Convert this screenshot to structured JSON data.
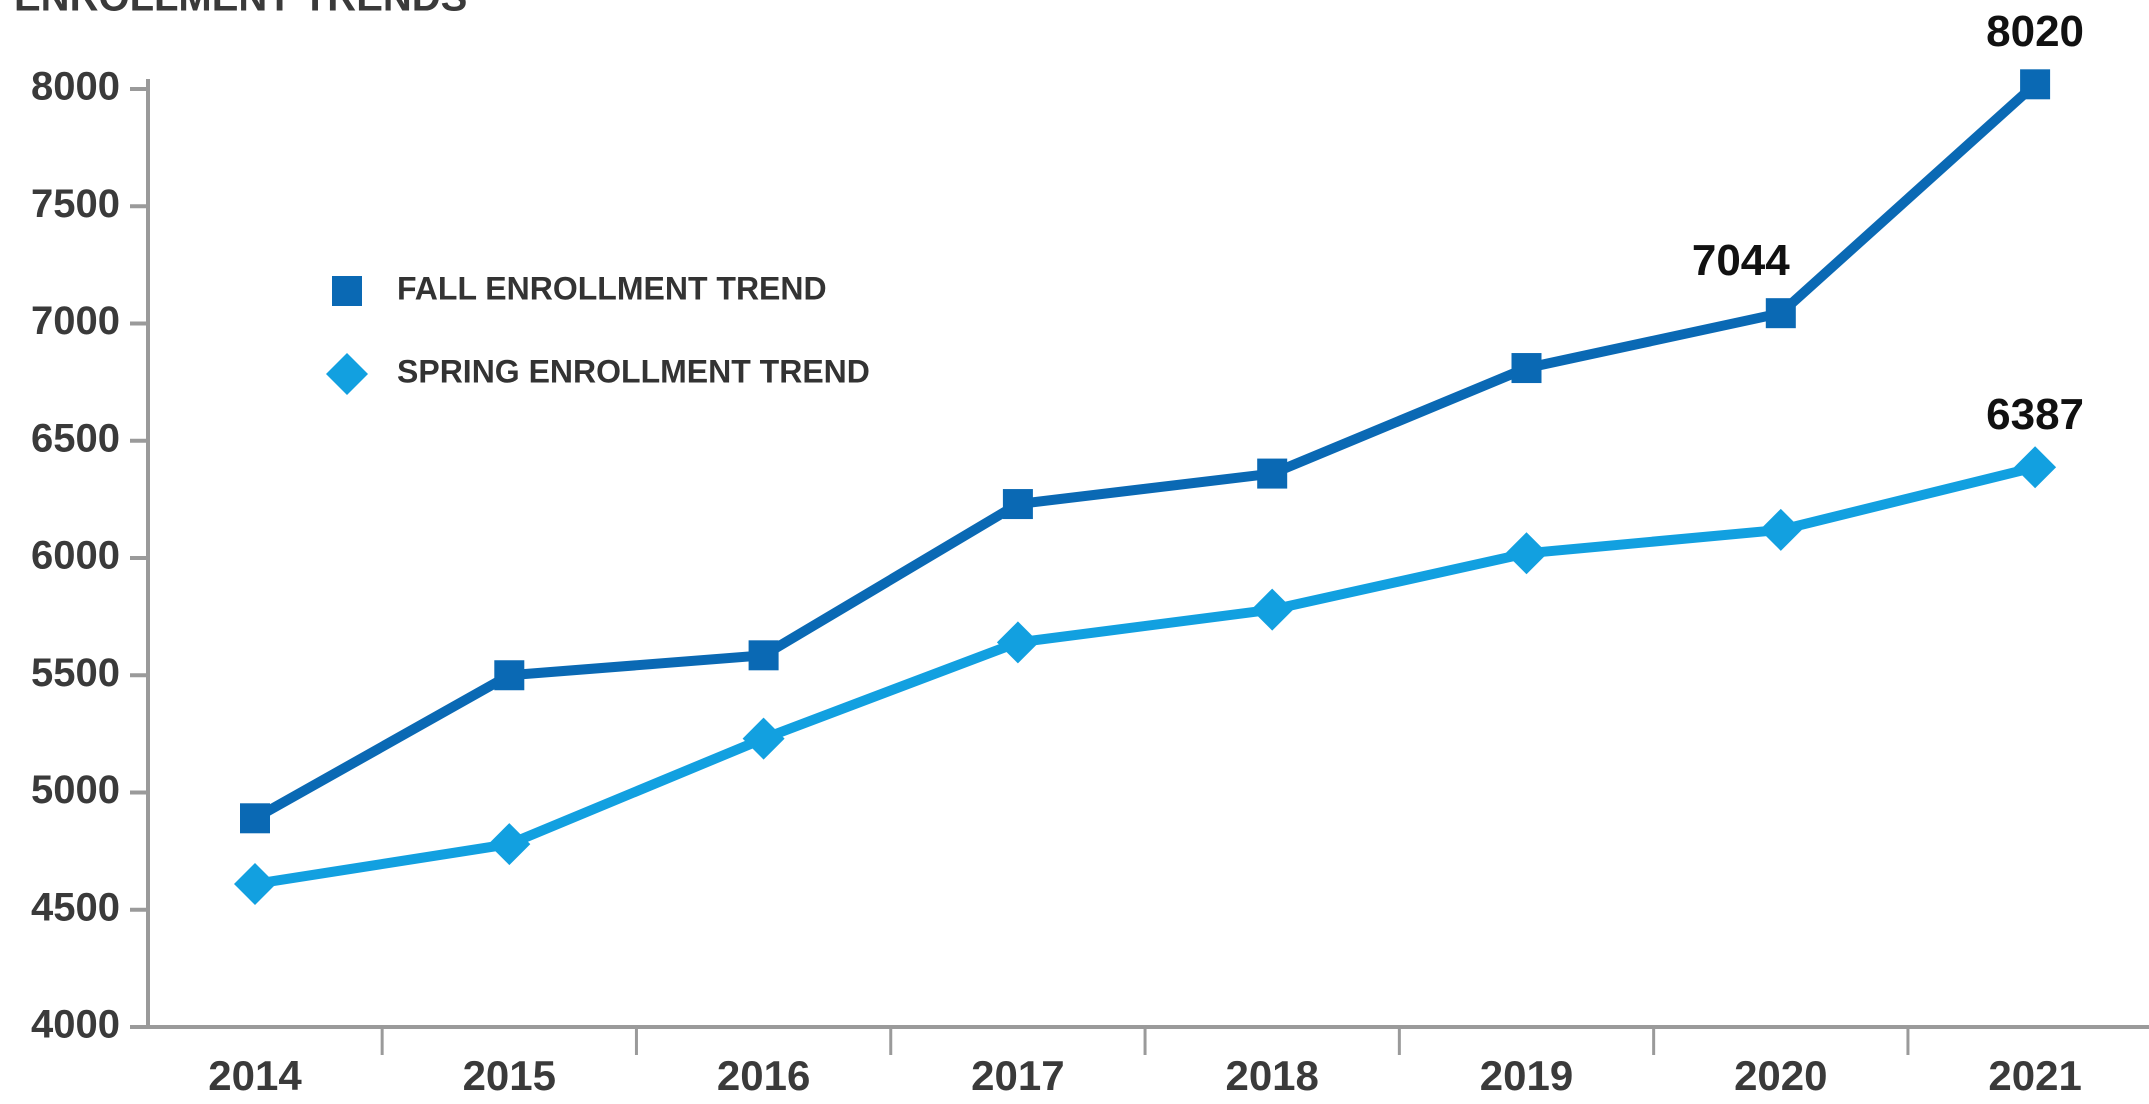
{
  "chart_data": {
    "type": "line",
    "title": "ENROLLMENT TRENDS",
    "categories": [
      "2014",
      "2015",
      "2016",
      "2017",
      "2018",
      "2019",
      "2020",
      "2021"
    ],
    "series": [
      {
        "name": "FALL ENROLLMENT TREND",
        "color": "#0a69b4",
        "marker": "square",
        "values": [
          4890,
          5500,
          5585,
          6230,
          6360,
          6810,
          7044,
          8020
        ],
        "value_labels": [
          null,
          null,
          null,
          null,
          null,
          null,
          "7044",
          "8020"
        ]
      },
      {
        "name": "SPRING ENROLLMENT TREND",
        "color": "#12a0e0",
        "marker": "diamond",
        "values": [
          4610,
          4780,
          5230,
          5640,
          5780,
          6020,
          6120,
          6387
        ],
        "value_labels": [
          null,
          null,
          null,
          null,
          null,
          null,
          null,
          "6387"
        ]
      }
    ],
    "ylim": [
      4000,
      8000
    ],
    "yticks": [
      4000,
      4500,
      5000,
      5500,
      6000,
      6500,
      7000,
      7500,
      8000
    ],
    "grid": false
  }
}
